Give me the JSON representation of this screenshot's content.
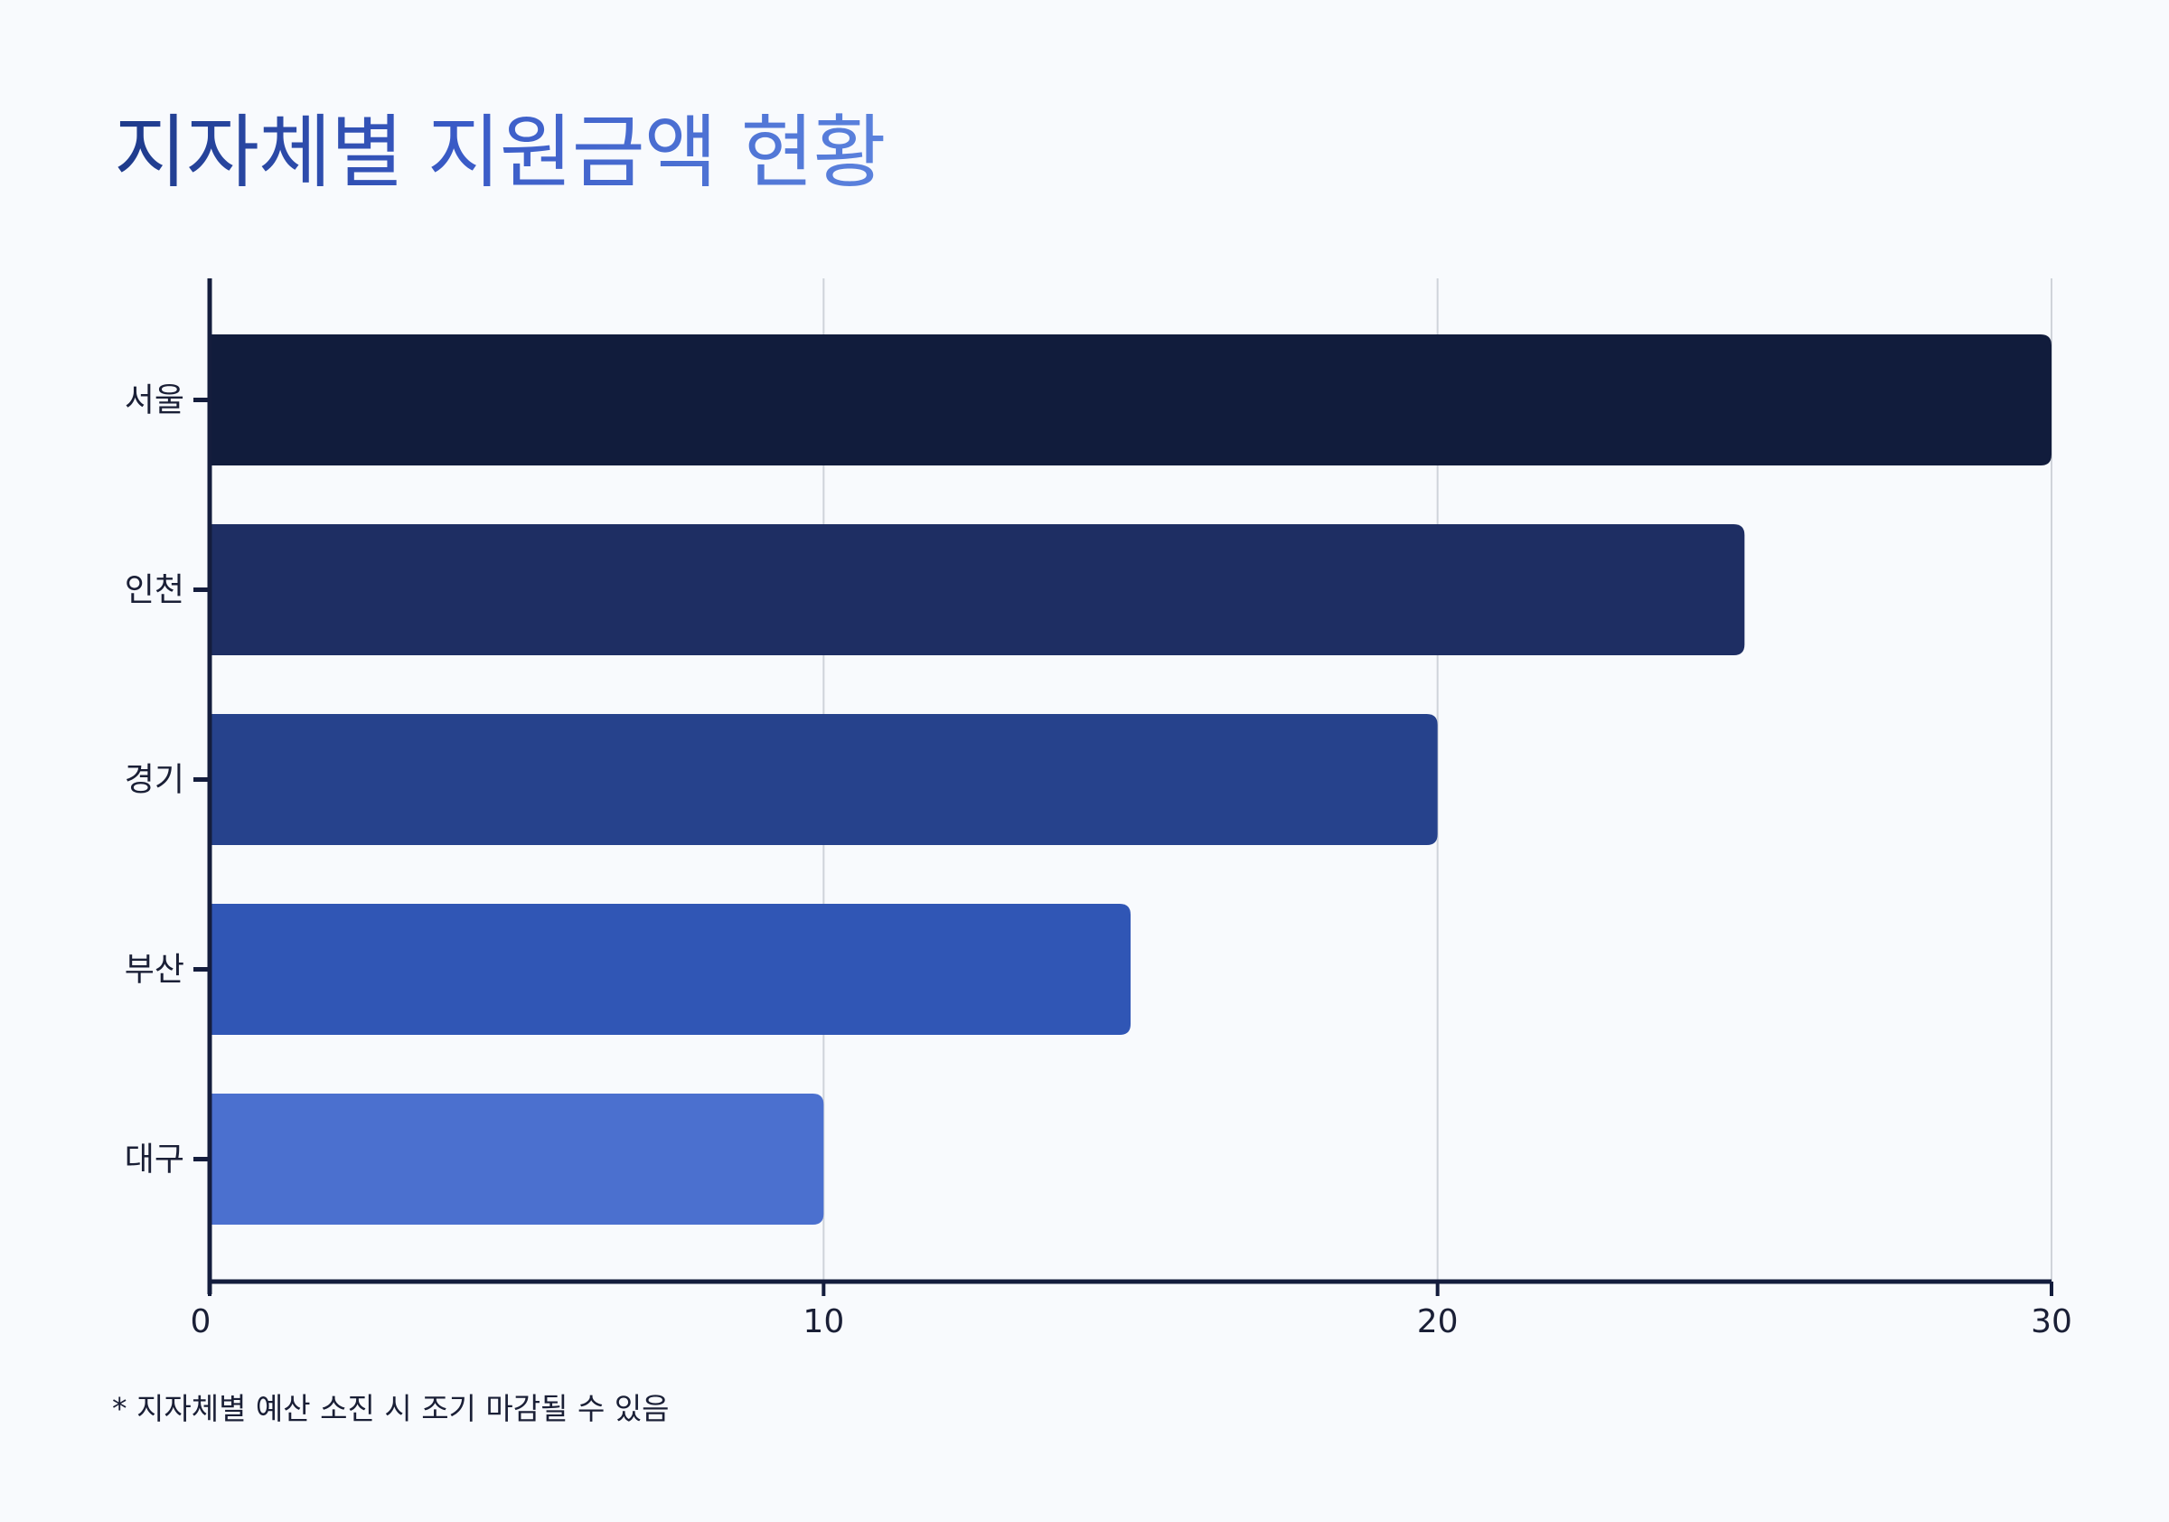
{
  "title": "지자체별 지원금액 현황",
  "footnote": "* 지자체별 예산 소진 시 조기 마감될 수 있음",
  "colors": {
    "background": "#f8fafd",
    "axis": "#141d3d",
    "grid": "#cfd3da",
    "text": "#1a1f36",
    "bars": [
      "#111c3c",
      "#1e2e63",
      "#26428c",
      "#3056b5",
      "#4b70cf"
    ]
  },
  "chart_data": {
    "type": "bar",
    "orientation": "horizontal",
    "categories": [
      "서울",
      "인천",
      "경기",
      "부산",
      "대구"
    ],
    "values": [
      30,
      25,
      20,
      15,
      10
    ],
    "xlim": [
      0,
      30
    ],
    "xticks": [
      "0",
      "10",
      "20",
      "30"
    ],
    "grid": true
  }
}
